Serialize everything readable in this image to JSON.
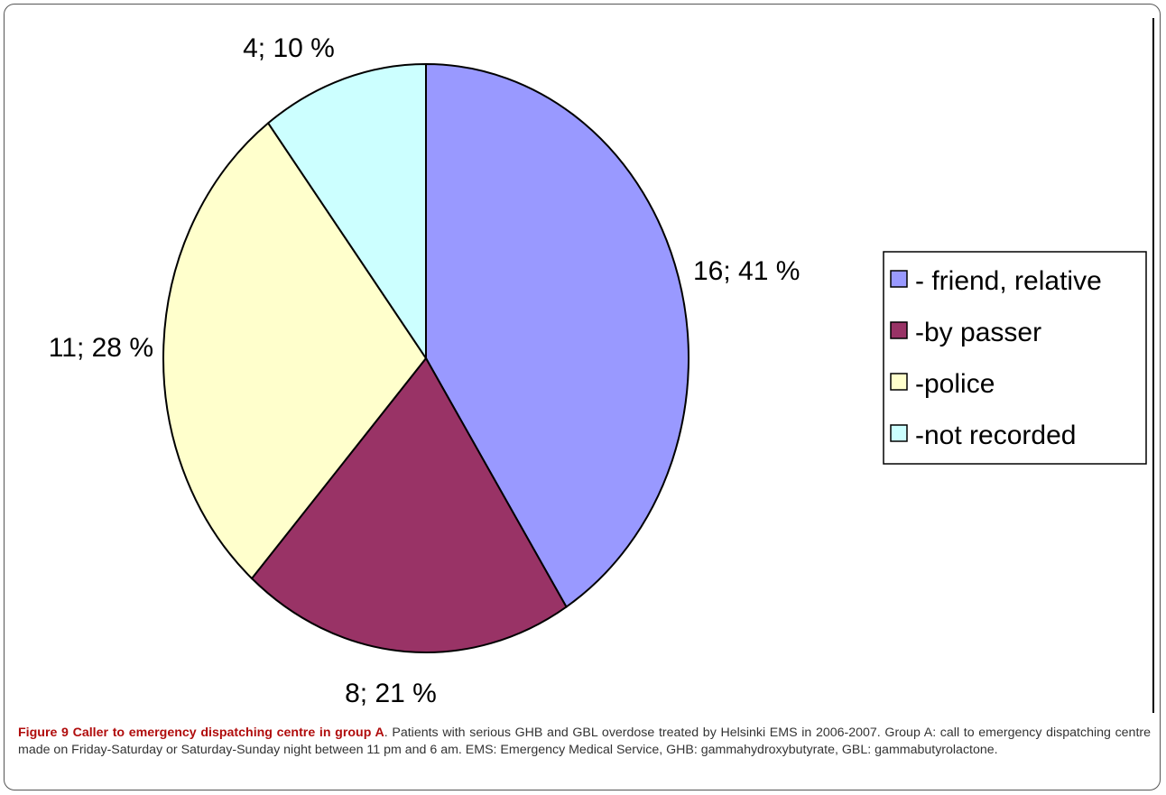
{
  "chart_data": {
    "type": "pie",
    "slices": [
      {
        "name": "- friend, relative",
        "value": 16,
        "percent": 41,
        "label": "16; 41 %",
        "color": "#9999ff"
      },
      {
        "name": "-by passer",
        "value": 8,
        "percent": 21,
        "label": "8; 21 %",
        "color": "#993366"
      },
      {
        "name": "-police",
        "value": 11,
        "percent": 28,
        "label": "11; 28 %",
        "color": "#ffffcc"
      },
      {
        "name": "-not recorded",
        "value": 4,
        "percent": 10,
        "label": "4; 10 %",
        "color": "#ccffff"
      }
    ],
    "start_angle_deg": 0,
    "direction": "clockwise",
    "legend_position": "right"
  },
  "caption": {
    "title": "Figure 9 Caller to emergency dispatching centre in group A",
    "text": ". Patients with serious GHB and GBL overdose treated by Helsinki EMS in 2006-2007. Group A: call to emergency dispatching centre made on Friday-Saturday or Saturday-Sunday night between 11 pm and 6 am. EMS: Emergency Medical Service, GHB: gammahydroxybutyrate, GBL: gammabutyrolactone."
  }
}
